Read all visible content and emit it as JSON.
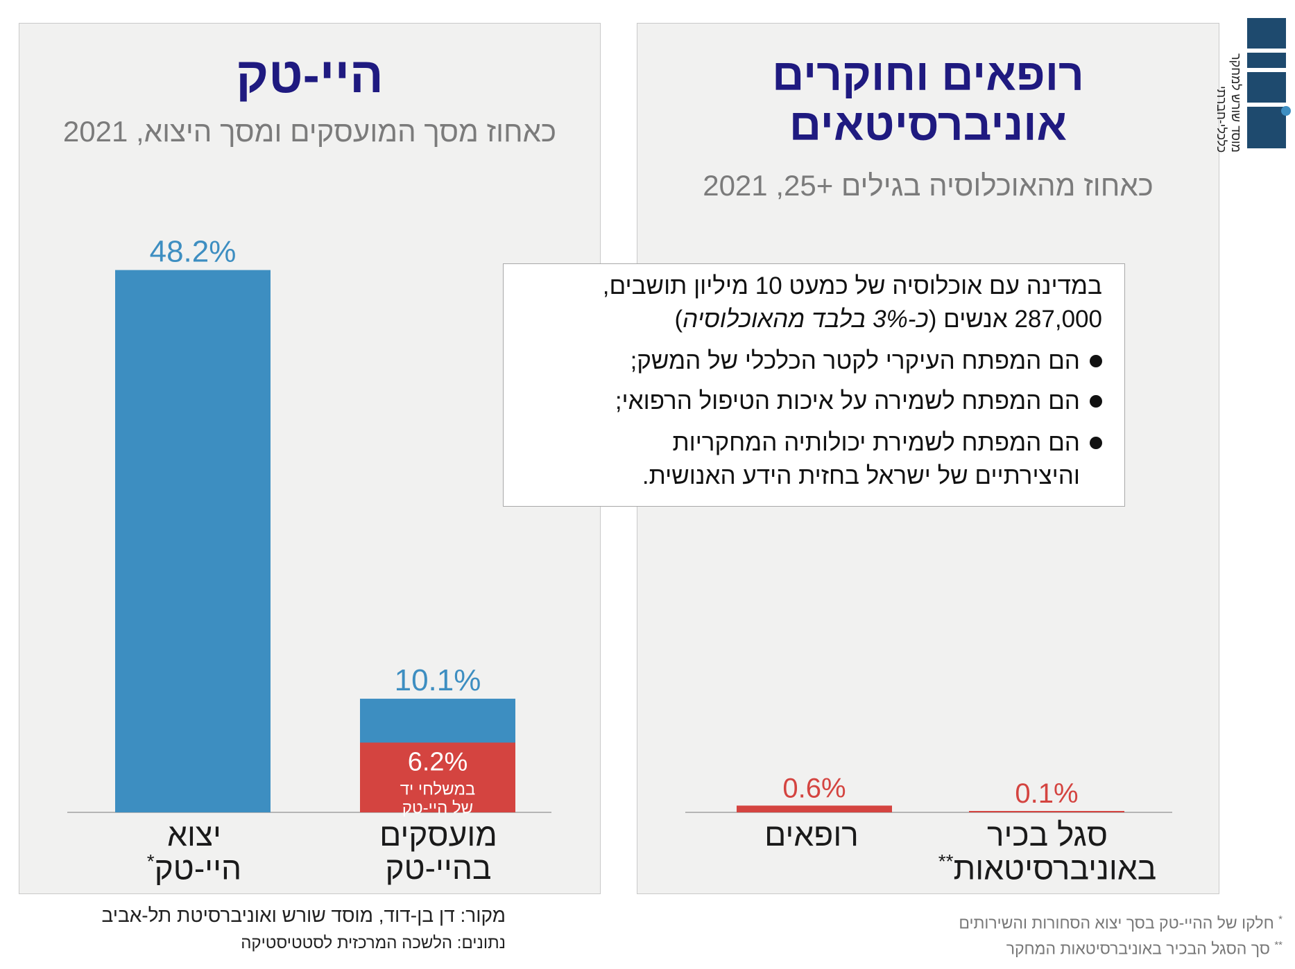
{
  "chart_data": [
    {
      "type": "bar",
      "title": "היי-טק",
      "subtitle": "כאחוז מסך המועסקים ומסך היצוא, 2021",
      "categories": [
        "יצוא היי-טק*",
        "מועסקים בהיי-טק"
      ],
      "series": [
        {
          "values": [
            48.2,
            10.1
          ],
          "labels": [
            "48.2%",
            "10.1%"
          ],
          "color": "#3d8ec1"
        },
        {
          "values": [
            null,
            6.2
          ],
          "labels": [
            "",
            "6.2%"
          ],
          "sublabel": [
            "במשלחי יד",
            "של היי-טק"
          ],
          "color": "#d44440"
        }
      ],
      "ylim": [
        0,
        55
      ],
      "grid": false
    },
    {
      "type": "bar",
      "title": "רופאים וחוקרים אוניברסיטאים",
      "subtitle": "כאחוז מהאוכלוסיה בגילים +25, 2021",
      "categories": [
        "רופאים",
        "סגל בכיר באוניברסיטאות**"
      ],
      "series": [
        {
          "values": [
            0.6,
            0.1
          ],
          "labels": [
            "0.6%",
            "0.1%"
          ],
          "color": "#d44440"
        }
      ],
      "ylim": [
        0,
        55
      ],
      "grid": false
    }
  ],
  "left_panel": {
    "title": "היי-טק",
    "subtitle": "כאחוז מסך המועסקים ומסך היצוא, 2021",
    "cat1_line1": "יצוא",
    "cat1_line2": "היי-טק",
    "cat1_mark": "*",
    "cat2_line1": "מועסקים",
    "cat2_line2": "בהיי-טק",
    "bar1_label": "48.2%",
    "bar2_label": "10.1%",
    "bar2_inner_label": "6.2%",
    "bar2_inner_text1": "במשלחי יד",
    "bar2_inner_text2": "של היי-טק"
  },
  "right_panel": {
    "title_line1": "רופאים וחוקרים",
    "title_line2": "אוניברסיטאים",
    "subtitle": "כאחוז מהאוכלוסיה בגילים +25, 2021",
    "cat1": "רופאים",
    "cat2_line1": "סגל בכיר",
    "cat2_line2": "באוניברסיטאות",
    "cat2_mark": "**",
    "bar1_label": "0.6%",
    "bar2_label": "0.1%"
  },
  "textbox": {
    "line1": "במדינה עם אוכלוסיה של כמעט 10 מיליון תושבים,",
    "line2_main": "287,000 אנשים (",
    "line2_italic": "כ-3% בלבד מהאוכלוסיה",
    "line2_end": ")",
    "bullets": [
      "הם המפתח העיקרי לקטר הכלכלי של המשק;",
      "הם המפתח לשמירה על איכות הטיפול הרפואי;",
      "הם המפתח לשמירת יכולותיה המחקריות והיצירתיים של ישראל בחזית הידע האנושית."
    ]
  },
  "footer": {
    "source": "מקור: דן בן-דוד, מוסד שורש ואוניברסיטת תל-אביב",
    "data": "נתונים: הלשכה המרכזית לסטטיסטיקה"
  },
  "notes": {
    "note1_mark": "*",
    "note1": "חלקו של ההיי-טק בסך יצוא הסחורות והשירותים",
    "note2_mark": "**",
    "note2": "סך הסגל הבכיר באוניברסיטאות המחקר"
  },
  "logo": {
    "name": "שורש",
    "tagline": "מוסד שורש למחקר כלכלי-חברתי"
  },
  "colors": {
    "blue": "#3d8ec1",
    "red": "#d44440",
    "title": "#1f1a80",
    "subtitle": "#7b7b7b",
    "panel": "#f1f1f0"
  }
}
